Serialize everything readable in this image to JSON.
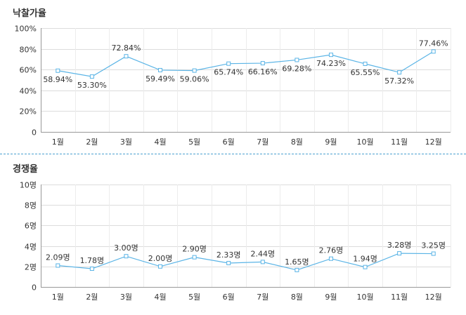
{
  "chart_data": [
    {
      "type": "line",
      "title": "낙찰가율",
      "categories": [
        "1월",
        "2월",
        "3월",
        "4월",
        "5월",
        "6월",
        "7월",
        "8월",
        "9월",
        "10월",
        "11월",
        "12월"
      ],
      "values": [
        58.94,
        53.3,
        72.84,
        59.49,
        59.06,
        65.74,
        66.16,
        69.28,
        74.23,
        65.55,
        57.32,
        77.46
      ],
      "data_labels": [
        "58.94%",
        "53.30%",
        "72.84%",
        "59.49%",
        "59.06%",
        "65.74%",
        "66.16%",
        "69.28%",
        "74.23%",
        "65.55%",
        "57.32%",
        "77.46%"
      ],
      "y_ticks": [
        "0",
        "20%",
        "40%",
        "60%",
        "80%",
        "100%"
      ],
      "ylim": [
        0,
        100
      ],
      "grid": true,
      "line_color": "#5ab4e6"
    },
    {
      "type": "line",
      "title": "경쟁율",
      "categories": [
        "1월",
        "2월",
        "3월",
        "4월",
        "5월",
        "6월",
        "7월",
        "8월",
        "9월",
        "10월",
        "11월",
        "12월"
      ],
      "values": [
        2.09,
        1.78,
        3.0,
        2.0,
        2.9,
        2.33,
        2.44,
        1.65,
        2.76,
        1.94,
        3.28,
        3.25
      ],
      "data_labels": [
        "2.09명",
        "1.78명",
        "3.00명",
        "2.00명",
        "2.90명",
        "2.33명",
        "2.44명",
        "1.65명",
        "2.76명",
        "1.94명",
        "3.28명",
        "3.25명"
      ],
      "y_ticks": [
        "0",
        "2명",
        "4명",
        "6명",
        "8명",
        "10명"
      ],
      "ylim": [
        0,
        10
      ],
      "grid": true,
      "line_color": "#5ab4e6"
    }
  ]
}
